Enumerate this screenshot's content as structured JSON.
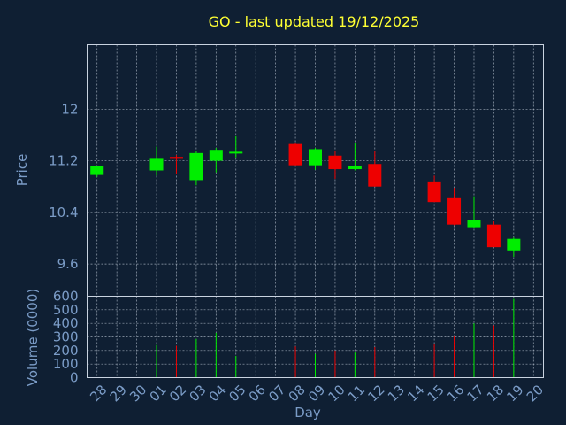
{
  "chart_data": [
    {
      "type": "candlestick",
      "title": "GO - last updated 19/12/2025",
      "ylabel": "Price",
      "xlabel": "",
      "ylim": [
        9.1,
        13.0
      ],
      "yticks": [
        9.6,
        10.4,
        11.2,
        12
      ],
      "ytick_labels": [
        "9.6",
        "10.4",
        "11.2",
        "12"
      ],
      "grid": true,
      "colors": {
        "up": "#00ee00",
        "down": "#ee0000",
        "background": "#0f1f33",
        "frame": "#c9d3e0",
        "text": "#7b9cc7",
        "title": "#ffff33"
      },
      "x": [
        "28",
        "29",
        "30",
        "01",
        "02",
        "03",
        "04",
        "05",
        "06",
        "07",
        "08",
        "09",
        "10",
        "11",
        "12",
        "13",
        "14",
        "15",
        "16",
        "17",
        "18",
        "19",
        "20"
      ],
      "candles": [
        {
          "x": "28",
          "open": 10.98,
          "high": 11.12,
          "low": 10.95,
          "close": 11.12
        },
        {
          "x": "01",
          "open": 11.05,
          "high": 11.42,
          "low": 10.97,
          "close": 11.23
        },
        {
          "x": "02",
          "open": 11.26,
          "high": 11.29,
          "low": 11.0,
          "close": 11.23
        },
        {
          "x": "03",
          "open": 10.9,
          "high": 11.35,
          "low": 10.82,
          "close": 11.32
        },
        {
          "x": "04",
          "open": 11.2,
          "high": 11.4,
          "low": 11.02,
          "close": 11.37
        },
        {
          "x": "05",
          "open": 11.32,
          "high": 11.58,
          "low": 11.25,
          "close": 11.34
        },
        {
          "x": "08",
          "open": 11.46,
          "high": 11.47,
          "low": 11.13,
          "close": 11.13
        },
        {
          "x": "09",
          "open": 11.13,
          "high": 11.4,
          "low": 11.06,
          "close": 11.38
        },
        {
          "x": "10",
          "open": 11.28,
          "high": 11.36,
          "low": 10.92,
          "close": 11.07
        },
        {
          "x": "11",
          "open": 11.07,
          "high": 11.48,
          "low": 11.05,
          "close": 11.12
        },
        {
          "x": "12",
          "open": 11.15,
          "high": 11.35,
          "low": 10.8,
          "close": 10.8
        },
        {
          "x": "15",
          "open": 10.88,
          "high": 10.97,
          "low": 10.56,
          "close": 10.56
        },
        {
          "x": "16",
          "open": 10.62,
          "high": 10.78,
          "low": 10.2,
          "close": 10.21
        },
        {
          "x": "17",
          "open": 10.17,
          "high": 10.65,
          "low": 10.15,
          "close": 10.28
        },
        {
          "x": "18",
          "open": 10.21,
          "high": 10.26,
          "low": 9.86,
          "close": 9.86
        },
        {
          "x": "19",
          "open": 9.81,
          "high": 10.01,
          "low": 9.71,
          "close": 9.99
        }
      ]
    },
    {
      "type": "bar",
      "ylabel": "Volume (0000)",
      "xlabel": "Day",
      "ylim": [
        0,
        600
      ],
      "yticks": [
        0,
        100,
        200,
        300,
        400,
        500,
        600
      ],
      "ytick_labels": [
        "0",
        "100",
        "200",
        "300",
        "400",
        "500",
        "600"
      ],
      "grid": true,
      "categories": [
        "28",
        "29",
        "30",
        "01",
        "02",
        "03",
        "04",
        "05",
        "06",
        "07",
        "08",
        "09",
        "10",
        "11",
        "12",
        "13",
        "14",
        "15",
        "16",
        "17",
        "18",
        "19",
        "20"
      ],
      "bars": [
        {
          "x": "01",
          "value": 240,
          "direction": "up"
        },
        {
          "x": "02",
          "value": 235,
          "direction": "down"
        },
        {
          "x": "03",
          "value": 285,
          "direction": "up"
        },
        {
          "x": "04",
          "value": 330,
          "direction": "up"
        },
        {
          "x": "05",
          "value": 160,
          "direction": "up"
        },
        {
          "x": "08",
          "value": 230,
          "direction": "down"
        },
        {
          "x": "09",
          "value": 175,
          "direction": "up"
        },
        {
          "x": "10",
          "value": 200,
          "direction": "down"
        },
        {
          "x": "11",
          "value": 185,
          "direction": "up"
        },
        {
          "x": "12",
          "value": 225,
          "direction": "down"
        },
        {
          "x": "15",
          "value": 250,
          "direction": "down"
        },
        {
          "x": "16",
          "value": 310,
          "direction": "down"
        },
        {
          "x": "17",
          "value": 400,
          "direction": "up"
        },
        {
          "x": "18",
          "value": 385,
          "direction": "down"
        },
        {
          "x": "19",
          "value": 580,
          "direction": "up"
        }
      ]
    }
  ]
}
